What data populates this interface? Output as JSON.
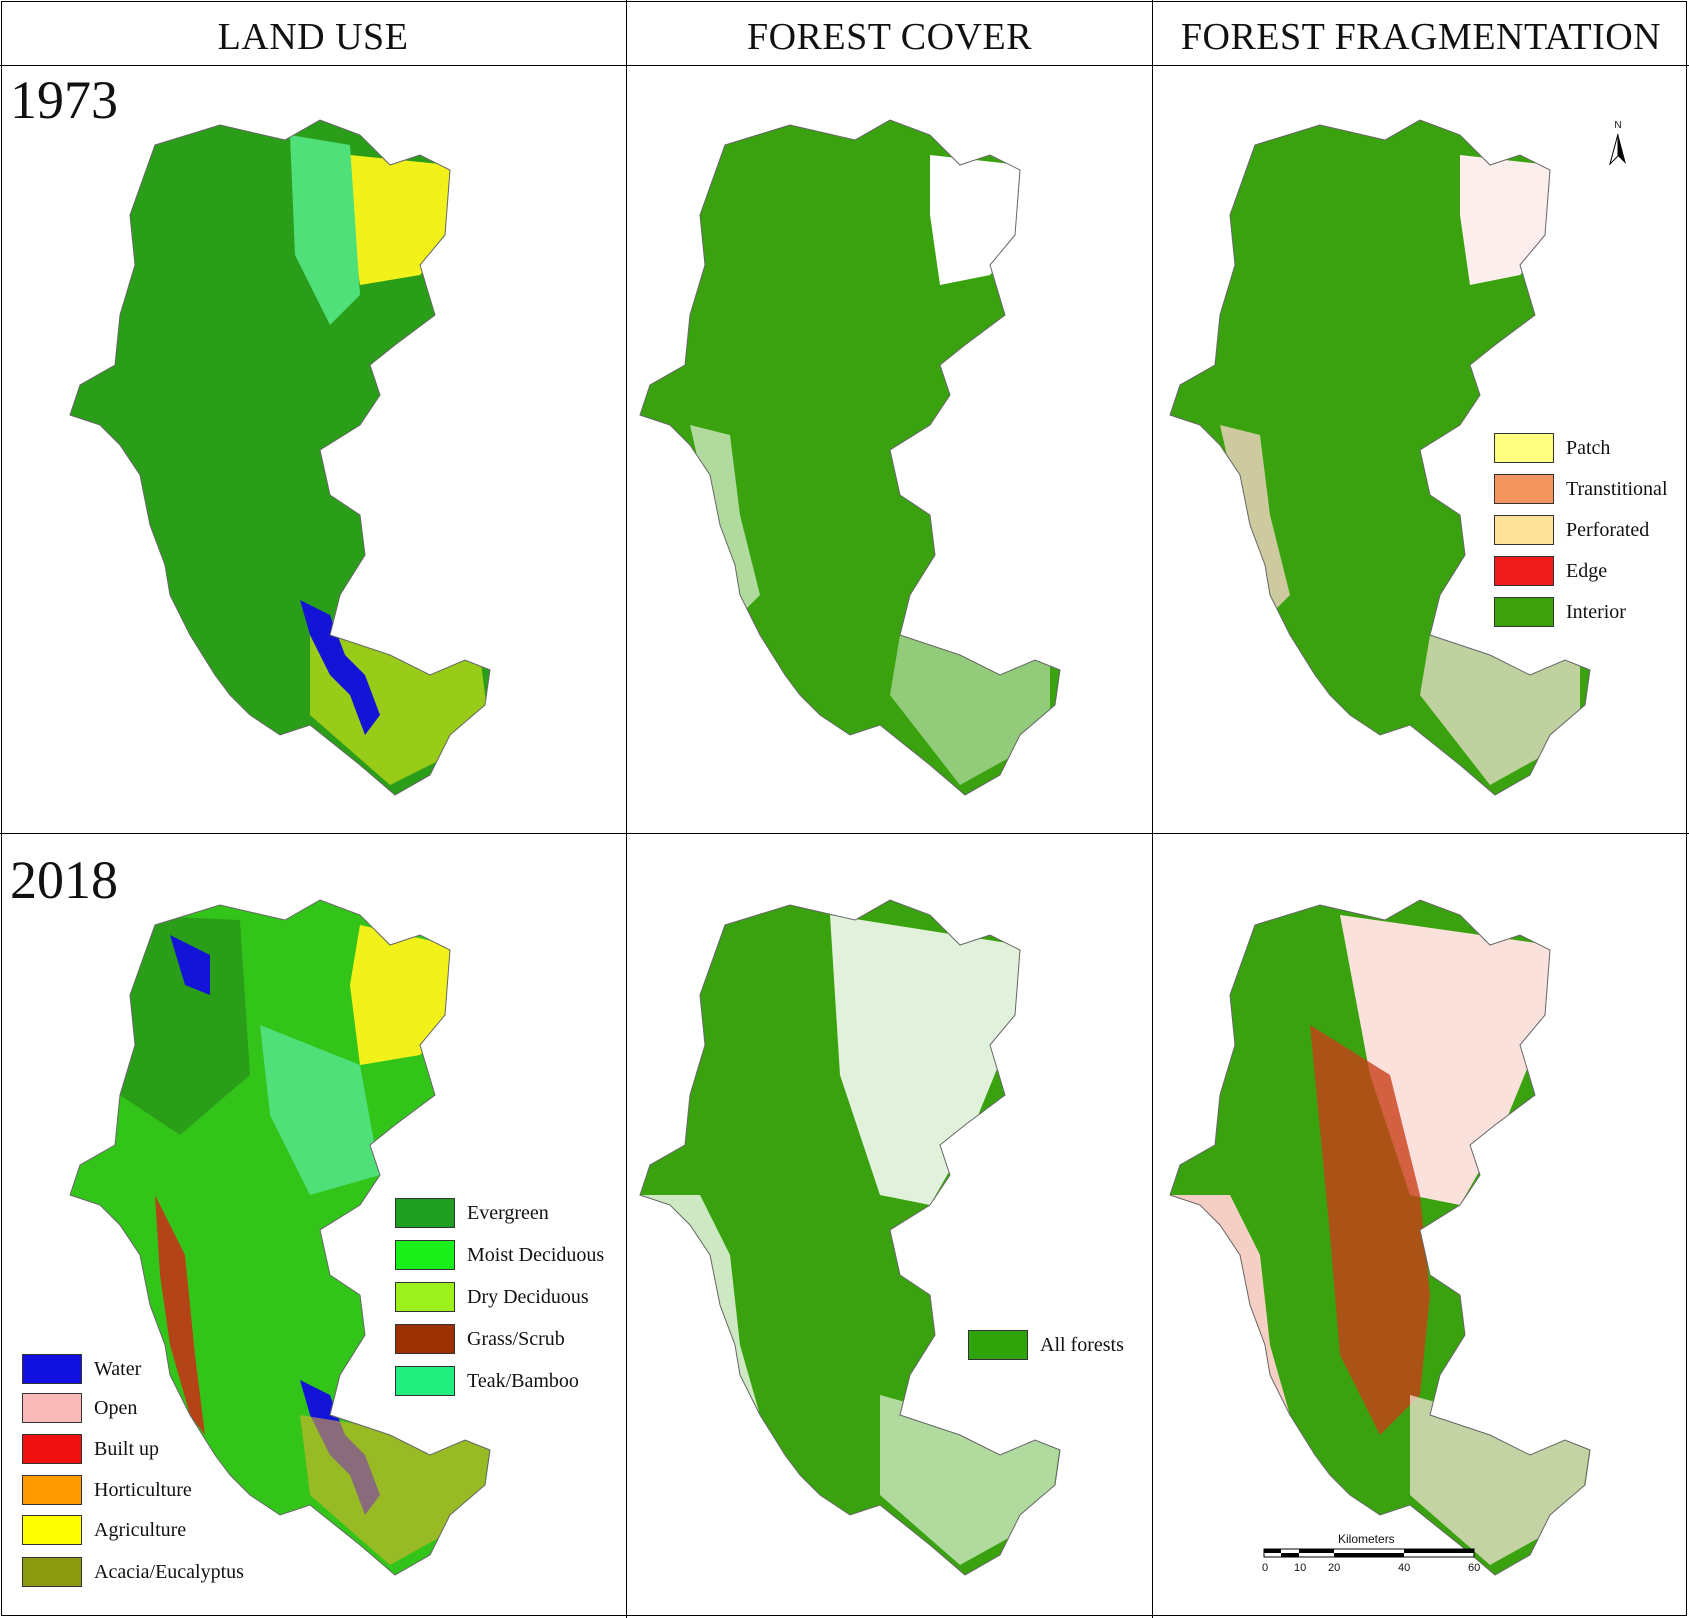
{
  "columns": {
    "land_use": "LAND USE",
    "forest_cover": "FOREST COVER",
    "forest_fragmentation": "FOREST FRAGMENTATION"
  },
  "years": {
    "top": "1973",
    "bottom": "2018"
  },
  "legends": {
    "fragmentation": [
      {
        "label": "Patch",
        "color": "#ffff80"
      },
      {
        "label": "Transtitional",
        "color": "#f4955f"
      },
      {
        "label": "Perforated",
        "color": "#fde39a"
      },
      {
        "label": "Edge",
        "color": "#ee1c1c"
      },
      {
        "label": "Interior",
        "color": "#3ea10c"
      }
    ],
    "land_use_left": [
      {
        "label": "Water",
        "color": "#1010e0"
      },
      {
        "label": "Open",
        "color": "#f8b9b9"
      },
      {
        "label": "Built up",
        "color": "#f01010"
      },
      {
        "label": "Horticulture",
        "color": "#ff9a00"
      },
      {
        "label": "Agriculture",
        "color": "#ffff00"
      },
      {
        "label": "Acacia/Eucalyptus",
        "color": "#8c9a10"
      }
    ],
    "land_use_right": [
      {
        "label": "Evergreen",
        "color": "#1f9f1f"
      },
      {
        "label": "Moist Deciduous",
        "color": "#19f019"
      },
      {
        "label": "Dry Deciduous",
        "color": "#9cf01c"
      },
      {
        "label": "Grass/Scrub",
        "color": "#9c3000"
      },
      {
        "label": "Teak/Bamboo",
        "color": "#22ee7f"
      }
    ],
    "forest_cover": [
      {
        "label": "All forests",
        "color": "#2ea30a"
      }
    ]
  },
  "map_colors": {
    "forest": "#3aa20e",
    "forest_1973_land": "#2a9e18",
    "forest_2018_land": "#33c41a",
    "agriculture": "#f2f21a",
    "teak": "#4fe07a",
    "water": "#1414d8",
    "builtup": "#e01818",
    "edge": "#c8401a",
    "open_white": "#ffffff",
    "outline": "#666666"
  },
  "north_label": "N",
  "scale": {
    "title": "Kilometers",
    "ticks": [
      "0",
      "10",
      "20",
      "40",
      "60"
    ]
  }
}
